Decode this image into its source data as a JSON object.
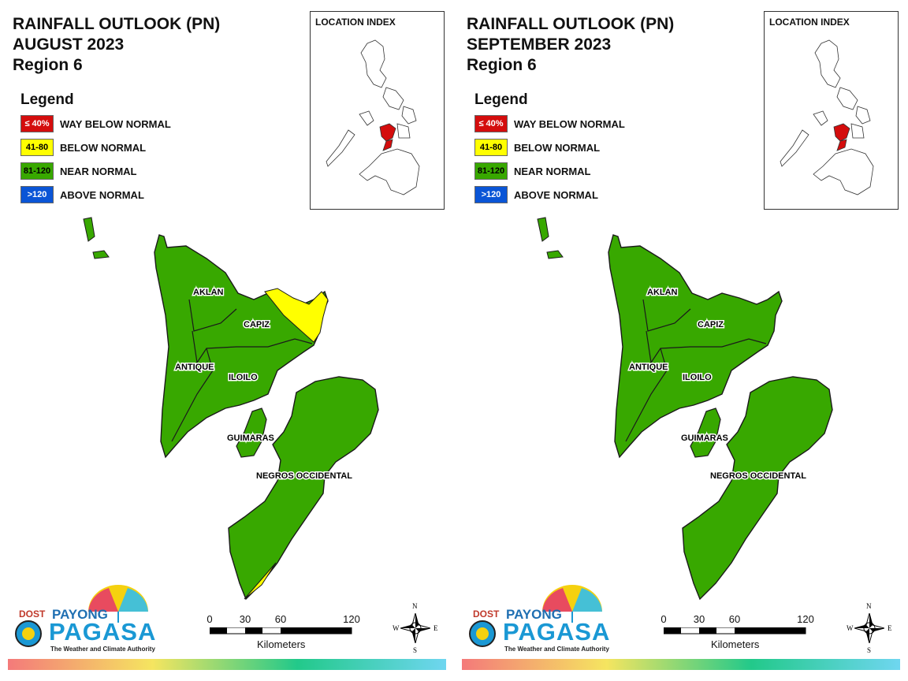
{
  "colors": {
    "way_below_normal": "#d40d0d",
    "below_normal": "#ffff00",
    "near_normal": "#38a800",
    "above_normal": "#0a55d6",
    "boundary": "#1a1a1a"
  },
  "legend": {
    "title": "Legend",
    "items": [
      {
        "range": "≤ 40%",
        "label": "WAY BELOW NORMAL",
        "color": "#d40d0d",
        "text_color": "#ffffff"
      },
      {
        "range": "41-80",
        "label": "BELOW NORMAL",
        "color": "#ffff00",
        "text_color": "#000000"
      },
      {
        "range": "81-120",
        "label": "NEAR NORMAL",
        "color": "#38a800",
        "text_color": "#000000"
      },
      {
        "range": ">120",
        "label": "ABOVE NORMAL",
        "color": "#0a55d6",
        "text_color": "#ffffff"
      }
    ]
  },
  "location_index": {
    "title": "LOCATION INDEX",
    "highlight_color": "#d40d0d"
  },
  "provinces": [
    "AKLAN",
    "CAPIZ",
    "ANTIQUE",
    "ILOILO",
    "GUIMARAS",
    "NEGROS OCCIDENTAL"
  ],
  "scale_bar": {
    "ticks": [
      "0",
      "30",
      "60",
      "120"
    ],
    "units": "Kilometers"
  },
  "compass": {
    "n": "N",
    "s": "S",
    "e": "E",
    "w": "W"
  },
  "logo": {
    "dost": "DOST",
    "payong": "PAYONG",
    "pagasa": "PAGASA",
    "tagline": "The Weather and Climate Authority"
  },
  "maps": [
    {
      "title_line1": "RAINFALL OUTLOOK (PN)",
      "title_line2": "AUGUST 2023",
      "title_line3": "Region 6",
      "categories_present": [
        "NEAR NORMAL",
        "BELOW NORMAL"
      ],
      "below_normal_areas": [
        "northeastern Capiz/Iloilo",
        "southern tip of Negros Occidental"
      ]
    },
    {
      "title_line1": "RAINFALL OUTLOOK (PN)",
      "title_line2": "SEPTEMBER 2023",
      "title_line3": "Region 6",
      "categories_present": [
        "NEAR NORMAL"
      ],
      "below_normal_areas": []
    }
  ]
}
